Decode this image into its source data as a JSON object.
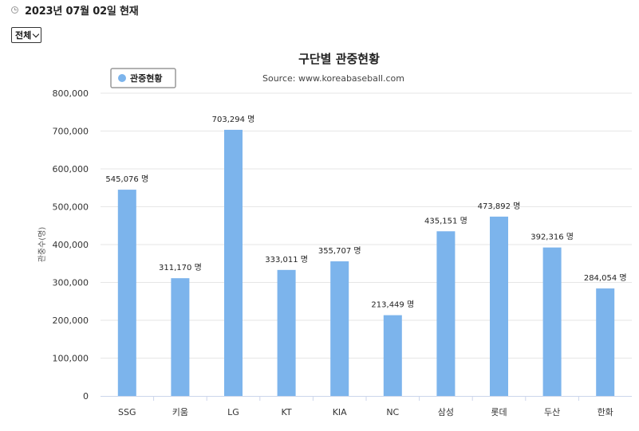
{
  "header": {
    "date_text": "2023년 07월 02일 현재",
    "filter_selected": "전체"
  },
  "colors": {
    "bar": "#7cb4ec",
    "legend_border": "#999999"
  },
  "chart_data": {
    "type": "bar",
    "title": "구단별 관중현황",
    "subtitle": "Source: www.koreabaseball.com",
    "xlabel": "",
    "ylabel": "관중수(명)",
    "legend": "관중현황",
    "legend_position": "top-left",
    "grid": true,
    "ylim": [
      0,
      800000
    ],
    "yticks": [
      "0",
      "100,000",
      "200,000",
      "300,000",
      "400,000",
      "500,000",
      "600,000",
      "700,000",
      "800,000"
    ],
    "categories": [
      "SSG",
      "키움",
      "LG",
      "KT",
      "KIA",
      "NC",
      "삼성",
      "롯데",
      "두산",
      "한화"
    ],
    "values": [
      545076,
      311170,
      703294,
      333011,
      355707,
      213449,
      435151,
      473892,
      392316,
      284054
    ],
    "data_labels": [
      "545,076 명",
      "311,170 명",
      "703,294 명",
      "333,011 명",
      "355,707 명",
      "213,449 명",
      "435,151 명",
      "473,892 명",
      "392,316 명",
      "284,054 명"
    ]
  }
}
